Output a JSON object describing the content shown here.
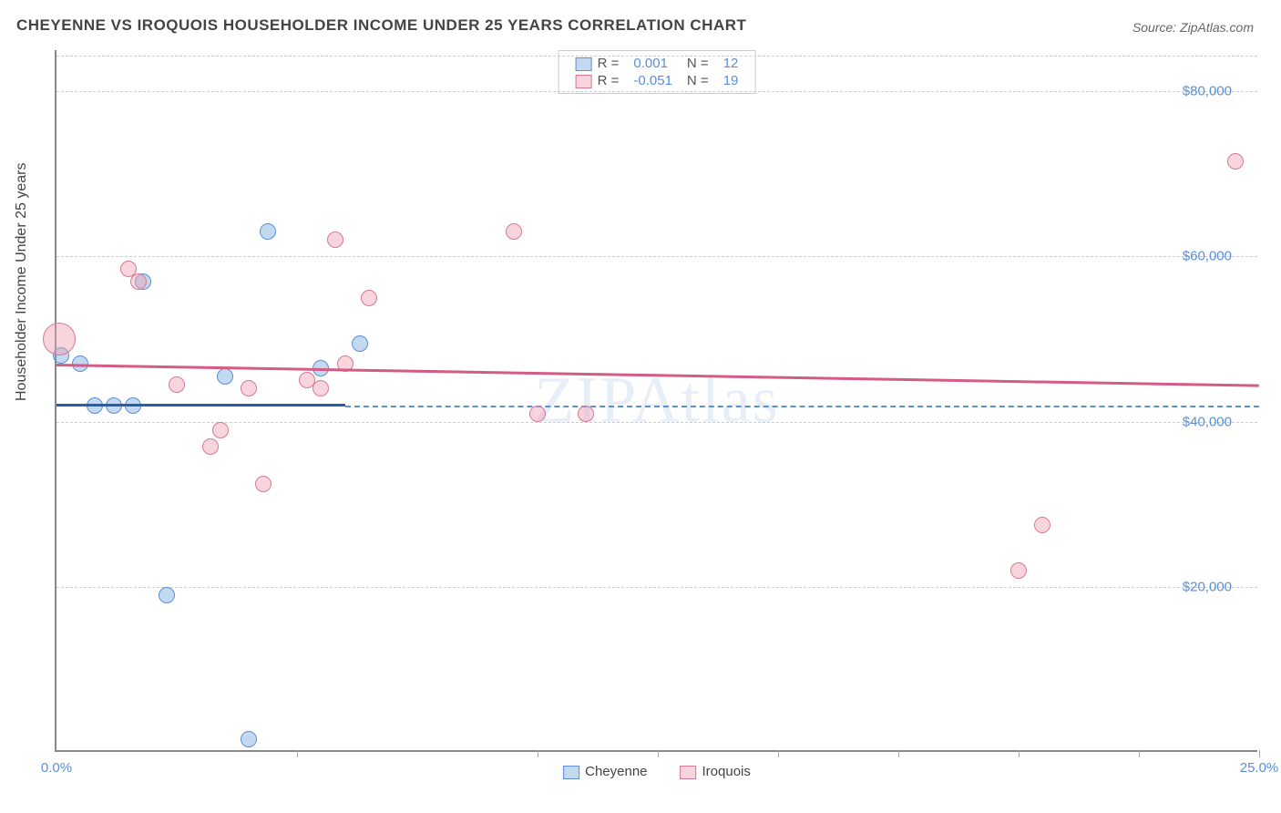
{
  "title": "CHEYENNE VS IROQUOIS HOUSEHOLDER INCOME UNDER 25 YEARS CORRELATION CHART",
  "source": "Source: ZipAtlas.com",
  "watermark": "ZIPAtlas",
  "chart": {
    "type": "scatter",
    "background_color": "#ffffff",
    "grid_color": "#cccccc",
    "axis_color": "#888888",
    "tick_label_color": "#5b8fd6",
    "ylabel": "Householder Income Under 25 years",
    "ylabel_fontsize": 16,
    "xlim": [
      0.0,
      25.0
    ],
    "ylim": [
      0,
      85000
    ],
    "ygrid_values": [
      20000,
      40000,
      60000,
      80000
    ],
    "ytick_labels": [
      "$20,000",
      "$40,000",
      "$60,000",
      "$80,000"
    ],
    "xtick_values": [
      0,
      5,
      10,
      12.5,
      15,
      17.5,
      20,
      22.5,
      25
    ],
    "xtick_show_label": [
      true,
      false,
      false,
      false,
      false,
      false,
      false,
      false,
      true
    ],
    "xtick_labels": [
      "0.0%",
      "",
      "",
      "",
      "",
      "",
      "",
      "",
      "25.0%"
    ],
    "reference_line": {
      "y": 42000,
      "color": "#5b8fd6",
      "dash": true
    },
    "series": [
      {
        "name": "Cheyenne",
        "fill": "rgba(120,170,220,0.45)",
        "stroke": "#5b8fd6",
        "trend_color": "#2a5ca8",
        "marker_radius": 9,
        "R": "0.001",
        "N": "12",
        "trend": {
          "x0": 0.0,
          "y0": 42200,
          "x1": 6.0,
          "y1": 42200
        },
        "points": [
          {
            "x": 0.1,
            "y": 48000,
            "r": 9
          },
          {
            "x": 0.5,
            "y": 47000,
            "r": 9
          },
          {
            "x": 0.8,
            "y": 42000,
            "r": 9
          },
          {
            "x": 1.2,
            "y": 42000,
            "r": 9
          },
          {
            "x": 1.6,
            "y": 42000,
            "r": 9
          },
          {
            "x": 1.8,
            "y": 57000,
            "r": 9
          },
          {
            "x": 2.3,
            "y": 19000,
            "r": 9
          },
          {
            "x": 3.5,
            "y": 45500,
            "r": 9
          },
          {
            "x": 4.0,
            "y": 1500,
            "r": 9
          },
          {
            "x": 4.4,
            "y": 63000,
            "r": 9
          },
          {
            "x": 5.5,
            "y": 46500,
            "r": 9
          },
          {
            "x": 6.3,
            "y": 49500,
            "r": 9
          }
        ]
      },
      {
        "name": "Iroquois",
        "fill": "rgba(240,160,180,0.45)",
        "stroke": "#d67a94",
        "trend_color": "#d45b83",
        "marker_radius": 9,
        "R": "-0.051",
        "N": "19",
        "trend": {
          "x0": 0.0,
          "y0": 47000,
          "x1": 25.0,
          "y1": 44500
        },
        "points": [
          {
            "x": 0.05,
            "y": 50000,
            "r": 18
          },
          {
            "x": 1.5,
            "y": 58500,
            "r": 9
          },
          {
            "x": 1.7,
            "y": 57000,
            "r": 9
          },
          {
            "x": 2.5,
            "y": 44500,
            "r": 9
          },
          {
            "x": 3.2,
            "y": 37000,
            "r": 9
          },
          {
            "x": 3.4,
            "y": 39000,
            "r": 9
          },
          {
            "x": 4.0,
            "y": 44000,
            "r": 9
          },
          {
            "x": 4.3,
            "y": 32500,
            "r": 9
          },
          {
            "x": 5.2,
            "y": 45000,
            "r": 9
          },
          {
            "x": 5.5,
            "y": 44000,
            "r": 9
          },
          {
            "x": 5.8,
            "y": 62000,
            "r": 9
          },
          {
            "x": 6.0,
            "y": 47000,
            "r": 9
          },
          {
            "x": 6.5,
            "y": 55000,
            "r": 9
          },
          {
            "x": 9.5,
            "y": 63000,
            "r": 9
          },
          {
            "x": 10.0,
            "y": 41000,
            "r": 9
          },
          {
            "x": 11.0,
            "y": 41000,
            "r": 9
          },
          {
            "x": 20.0,
            "y": 22000,
            "r": 9
          },
          {
            "x": 20.5,
            "y": 27500,
            "r": 9
          },
          {
            "x": 24.5,
            "y": 71500,
            "r": 9
          }
        ]
      }
    ],
    "legend_top": {
      "r_label": "R =",
      "n_label": "N ="
    },
    "legend_bottom": [
      {
        "label": "Cheyenne",
        "fill": "rgba(120,170,220,0.45)",
        "stroke": "#5b8fd6"
      },
      {
        "label": "Iroquois",
        "fill": "rgba(240,160,180,0.45)",
        "stroke": "#d67a94"
      }
    ]
  }
}
